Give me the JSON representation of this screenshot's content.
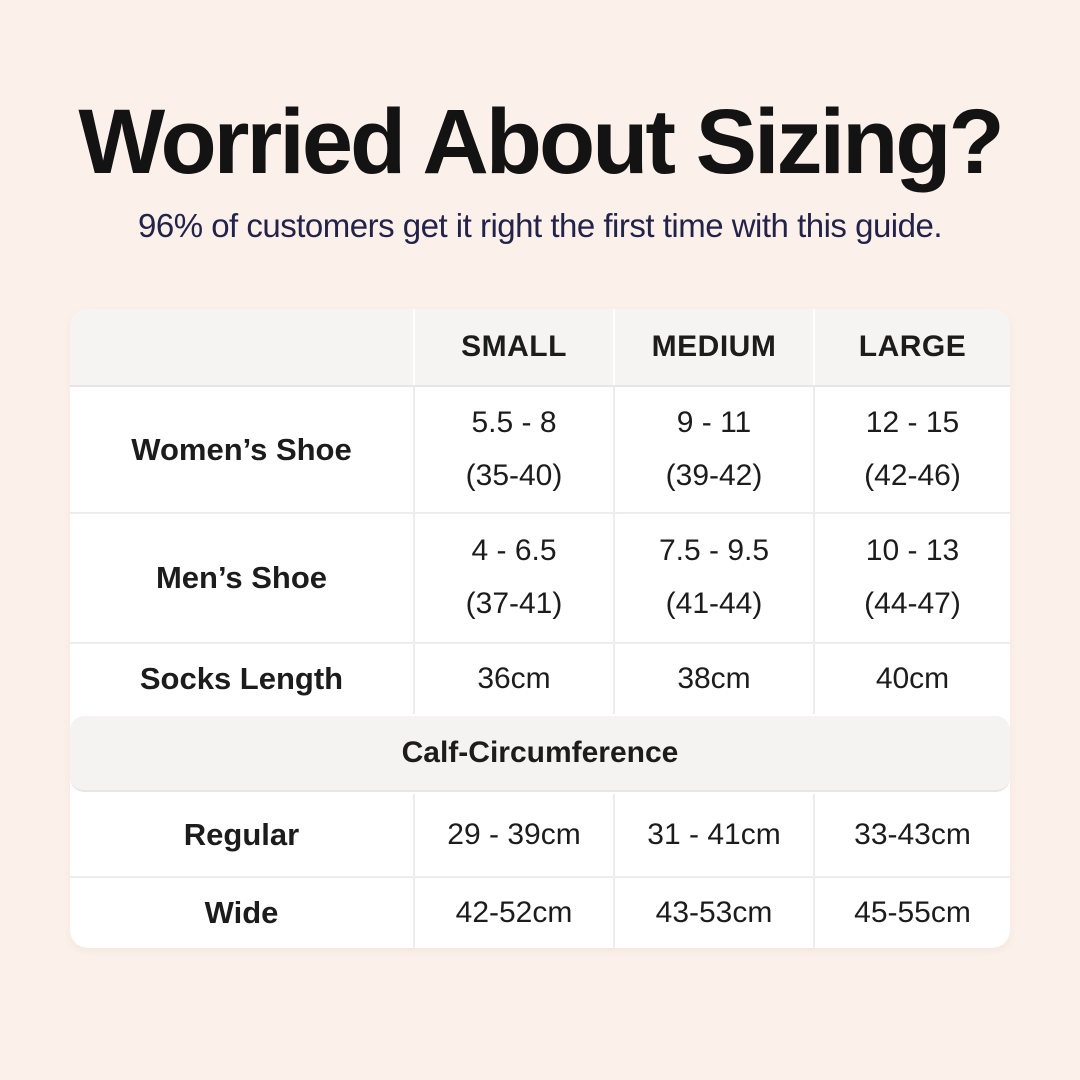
{
  "header": {
    "title": "Worried About Sizing?",
    "subtitle": "96% of customers get it right the first time with this guide."
  },
  "table": {
    "size_columns": [
      "SMALL",
      "MEDIUM",
      "LARGE"
    ],
    "shoe_rows": [
      {
        "label": "Women’s Shoe",
        "cells": [
          {
            "line1": "5.5 - 8",
            "line2": "(35-40)"
          },
          {
            "line1": "9 - 11",
            "line2": "(39-42)"
          },
          {
            "line1": "12 - 15",
            "line2": "(42-46)"
          }
        ]
      },
      {
        "label": "Men’s Shoe",
        "cells": [
          {
            "line1": "4 - 6.5",
            "line2": "(37-41)"
          },
          {
            "line1": "7.5 - 9.5",
            "line2": "(41-44)"
          },
          {
            "line1": "10 - 13",
            "line2": "(44-47)"
          }
        ]
      }
    ],
    "socks_length_row": {
      "label": "Socks Length",
      "values": [
        "36cm",
        "38cm",
        "40cm"
      ]
    },
    "calf_section_title": "Calf-Circumference",
    "calf_rows": [
      {
        "label": "Regular",
        "values": [
          "29 - 39cm",
          "31 - 41cm",
          "33-43cm"
        ]
      },
      {
        "label": "Wide",
        "values": [
          "42-52cm",
          "43-53cm",
          "45-55cm"
        ]
      }
    ]
  },
  "colors": {
    "background": "#fcf1ea",
    "table_background": "#ffffff",
    "header_row_background": "#f5f4f3",
    "section_bar_background": "#f4f3f2",
    "divider": "#eeecec",
    "divider_strong": "#e7e6e5",
    "title_text": "#131313",
    "subtitle_text": "#23234a",
    "table_text": "#1c1c1c"
  }
}
